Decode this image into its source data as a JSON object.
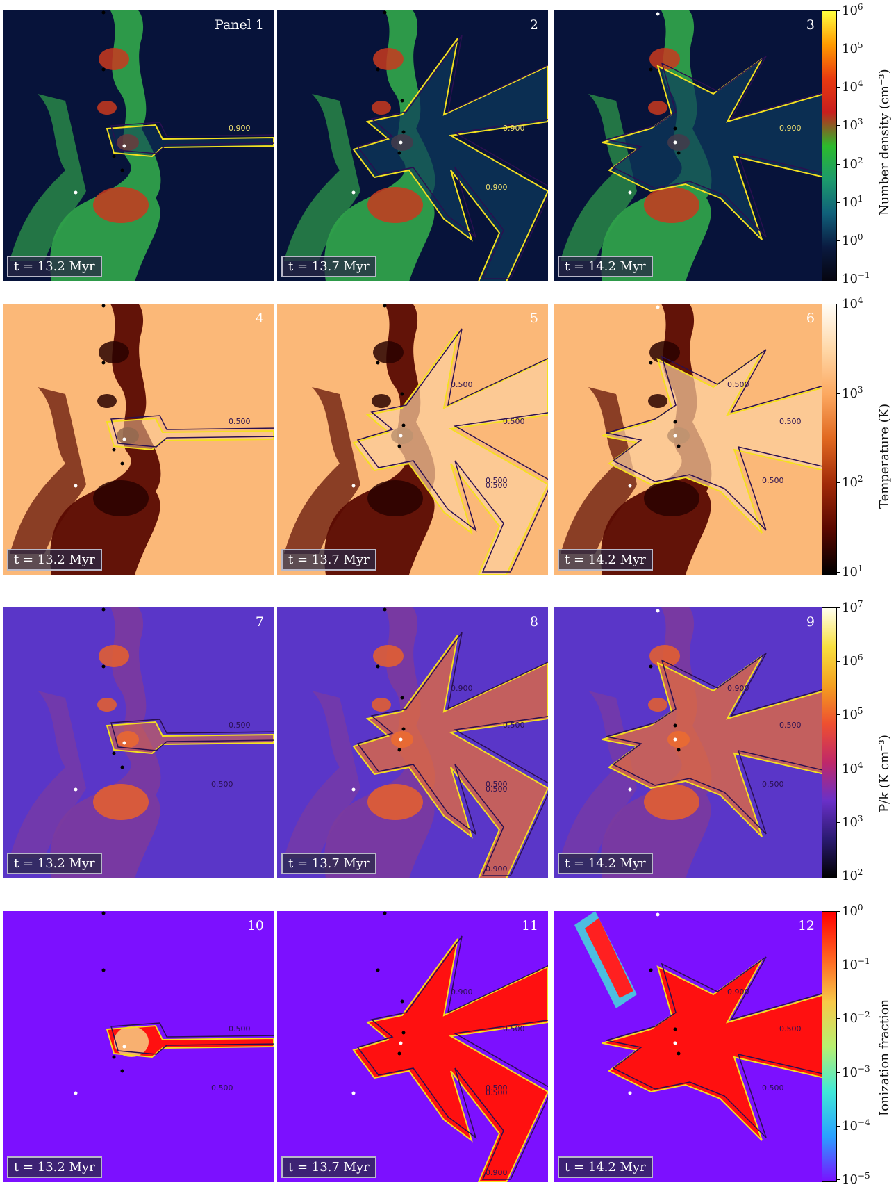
{
  "rows": [
    {
      "id": "density",
      "colorbar": {
        "label": "Number density (cm⁻³)",
        "ticks": [
          {
            "base": "10",
            "exp": "6"
          },
          {
            "base": "10",
            "exp": "5"
          },
          {
            "base": "10",
            "exp": "4"
          },
          {
            "base": "10",
            "exp": "3"
          },
          {
            "base": "10",
            "exp": "2"
          },
          {
            "base": "10",
            "exp": "1"
          },
          {
            "base": "10",
            "exp": "0"
          },
          {
            "base": "10",
            "exp": "−1"
          }
        ],
        "gradient": [
          "#ffff40",
          "#ff9a00",
          "#e83a10",
          "#c81e1e",
          "#2cba2c",
          "#1c9a6c",
          "#10607a",
          "#0a1a40",
          "#050510"
        ]
      },
      "panels": [
        {
          "number": "Panel 1",
          "time": "t = 13.2 Myr",
          "contour_labels": [
            "0.900"
          ]
        },
        {
          "number": "2",
          "time": "t = 13.7 Myr",
          "contour_labels": [
            "0.900",
            "0.900"
          ]
        },
        {
          "number": "3",
          "time": "t = 14.2 Myr",
          "contour_labels": [
            "0.900"
          ]
        }
      ],
      "bg": "#07133a",
      "gas": "#2fa04a",
      "dense": "#c83a1e"
    },
    {
      "id": "temperature",
      "colorbar": {
        "label": "Temperature (K)",
        "ticks": [
          {
            "base": "10",
            "exp": "4"
          },
          {
            "base": "10",
            "exp": "3"
          },
          {
            "base": "10",
            "exp": "2"
          },
          {
            "base": "10",
            "exp": "1"
          }
        ],
        "gradient": [
          "#fffdf8",
          "#ffd8a8",
          "#fca860",
          "#e06820",
          "#a02a08",
          "#5a0800",
          "#000000"
        ]
      },
      "panels": [
        {
          "number": "4",
          "time": "t = 13.2 Myr",
          "contour_labels": [
            "0.500"
          ]
        },
        {
          "number": "5",
          "time": "t = 13.7 Myr",
          "contour_labels": [
            "0.500",
            "0.500",
            "0.500",
            "0.500"
          ]
        },
        {
          "number": "6",
          "time": "t = 14.2 Myr",
          "contour_labels": [
            "0.500",
            "0.500",
            "0.500"
          ]
        }
      ],
      "bg": "#fbb878",
      "gas": "#5a0a02",
      "dense": "#2a0200"
    },
    {
      "id": "pressure",
      "colorbar": {
        "label": "P/k (K cm⁻³)",
        "ticks": [
          {
            "base": "10",
            "exp": "7"
          },
          {
            "base": "10",
            "exp": "6"
          },
          {
            "base": "10",
            "exp": "5"
          },
          {
            "base": "10",
            "exp": "4"
          },
          {
            "base": "10",
            "exp": "3"
          },
          {
            "base": "10",
            "exp": "2"
          }
        ],
        "gradient": [
          "#fffff0",
          "#f8e040",
          "#f4a020",
          "#ee5030",
          "#c02868",
          "#6a30c8",
          "#2a1a70",
          "#000000"
        ]
      },
      "panels": [
        {
          "number": "7",
          "time": "t = 13.2 Myr",
          "contour_labels": [
            "0.500",
            "0.500"
          ]
        },
        {
          "number": "8",
          "time": "t = 13.7 Myr",
          "contour_labels": [
            "0.500",
            "0.500",
            "0.900",
            "0.500",
            "0.900"
          ]
        },
        {
          "number": "9",
          "time": "t = 14.2 Myr",
          "contour_labels": [
            "0.500",
            "0.500",
            "0.900"
          ]
        }
      ],
      "bg": "#5a36c8",
      "gas": "#7a3aa0",
      "dense": "#e8602a"
    },
    {
      "id": "ionization",
      "colorbar": {
        "label": "Ionization fraction",
        "ticks": [
          {
            "base": "10",
            "exp": "0"
          },
          {
            "base": "10",
            "exp": "−1"
          },
          {
            "base": "10",
            "exp": "−2"
          },
          {
            "base": "10",
            "exp": "−3"
          },
          {
            "base": "10",
            "exp": "−4"
          },
          {
            "base": "10",
            "exp": "−5"
          }
        ],
        "gradient": [
          "#ff0000",
          "#ff6020",
          "#f8c848",
          "#b8f070",
          "#40e8d8",
          "#2aa0ff",
          "#7a10ff"
        ]
      },
      "panels": [
        {
          "number": "10",
          "time": "t = 13.2 Myr",
          "contour_labels": [
            "0.500",
            "0.500"
          ]
        },
        {
          "number": "11",
          "time": "t = 13.7 Myr",
          "contour_labels": [
            "0.500",
            "0.500",
            "0.900",
            "0.500",
            "0.900"
          ]
        },
        {
          "number": "12",
          "time": "t = 14.2 Myr",
          "contour_labels": [
            "0.500",
            "0.500",
            "0.900"
          ]
        }
      ],
      "bg": "#7c10ff",
      "gas": "#7c10ff",
      "dense": "#ff1010"
    }
  ]
}
